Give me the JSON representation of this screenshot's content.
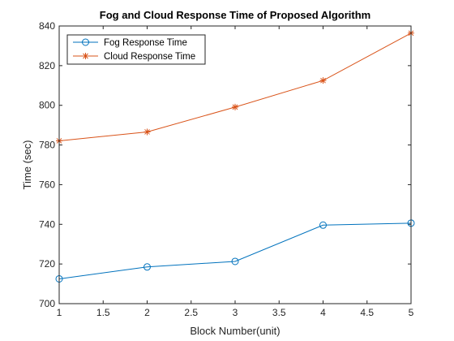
{
  "chart_data": {
    "type": "line",
    "title": "Fog and Cloud Response Time of Proposed Algorithm",
    "xlabel": "Block Number(unit)",
    "ylabel": "Time (sec)",
    "xlim": [
      1,
      5
    ],
    "ylim": [
      700,
      840
    ],
    "xticks": [
      1,
      1.5,
      2,
      2.5,
      3,
      3.5,
      4,
      4.5,
      5
    ],
    "yticks": [
      700,
      720,
      740,
      760,
      780,
      800,
      820,
      840
    ],
    "xtick_labels": [
      "1",
      "1.5",
      "2",
      "2.5",
      "3",
      "3.5",
      "4",
      "4.5",
      "5"
    ],
    "ytick_labels": [
      "700",
      "720",
      "740",
      "760",
      "780",
      "800",
      "820",
      "840"
    ],
    "grid": false,
    "legend_position": "top-left",
    "x": [
      1,
      2,
      3,
      4,
      5
    ],
    "series": [
      {
        "name": "Fog Response Time",
        "values": [
          712.5,
          718.5,
          721.3,
          739.6,
          740.6
        ],
        "color": "#0072BD",
        "marker": "circle"
      },
      {
        "name": "Cloud Response Time",
        "values": [
          782.1,
          786.6,
          799.1,
          812.5,
          836.4
        ],
        "color": "#D95319",
        "marker": "asterisk"
      }
    ]
  }
}
